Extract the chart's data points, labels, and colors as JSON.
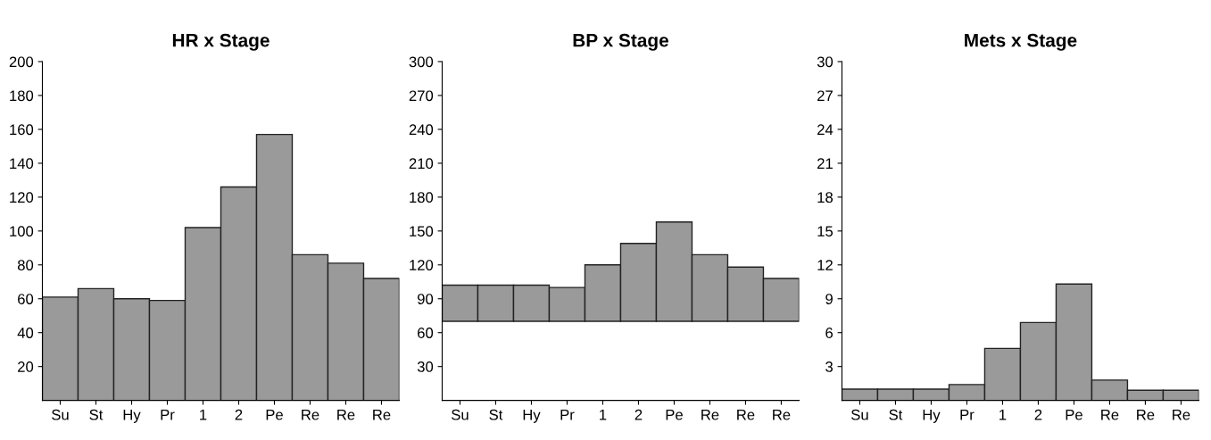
{
  "chart_data": [
    {
      "type": "bar",
      "title": "HR x Stage",
      "categories": [
        "Su",
        "St",
        "Hy",
        "Pr",
        "1",
        "2",
        "Pe",
        "Re",
        "Re",
        "Re"
      ],
      "values": [
        61,
        66,
        60,
        59,
        102,
        126,
        157,
        86,
        81,
        72
      ],
      "color": "#9a9a9a",
      "ylim": [
        0,
        200
      ],
      "yticks": [
        20,
        40,
        60,
        80,
        100,
        120,
        140,
        160,
        180,
        200
      ],
      "grid": false,
      "legend": false
    },
    {
      "type": "bar",
      "title": "BP x Stage",
      "categories": [
        "Su",
        "St",
        "Hy",
        "Pr",
        "1",
        "2",
        "Pe",
        "Re",
        "Re",
        "Re"
      ],
      "base": [
        70,
        70,
        70,
        70,
        70,
        70,
        70,
        70,
        70,
        70
      ],
      "values": [
        32,
        32,
        32,
        30,
        50,
        69,
        88,
        59,
        48,
        38
      ],
      "color": "#9a9a9a",
      "ylim": [
        0,
        300
      ],
      "yticks": [
        30,
        60,
        90,
        120,
        150,
        180,
        210,
        240,
        270,
        300
      ],
      "grid": false,
      "legend": false
    },
    {
      "type": "bar",
      "title": "Mets x Stage",
      "categories": [
        "Su",
        "St",
        "Hy",
        "Pr",
        "1",
        "2",
        "Pe",
        "Re",
        "Re",
        "Re"
      ],
      "values": [
        1.0,
        1.0,
        1.0,
        1.4,
        4.6,
        6.9,
        10.3,
        1.8,
        0.9,
        0.9
      ],
      "color": "#9a9a9a",
      "ylim": [
        0,
        30
      ],
      "yticks": [
        3,
        6,
        9,
        12,
        15,
        18,
        21,
        24,
        27,
        30
      ],
      "grid": false,
      "legend": false
    }
  ]
}
